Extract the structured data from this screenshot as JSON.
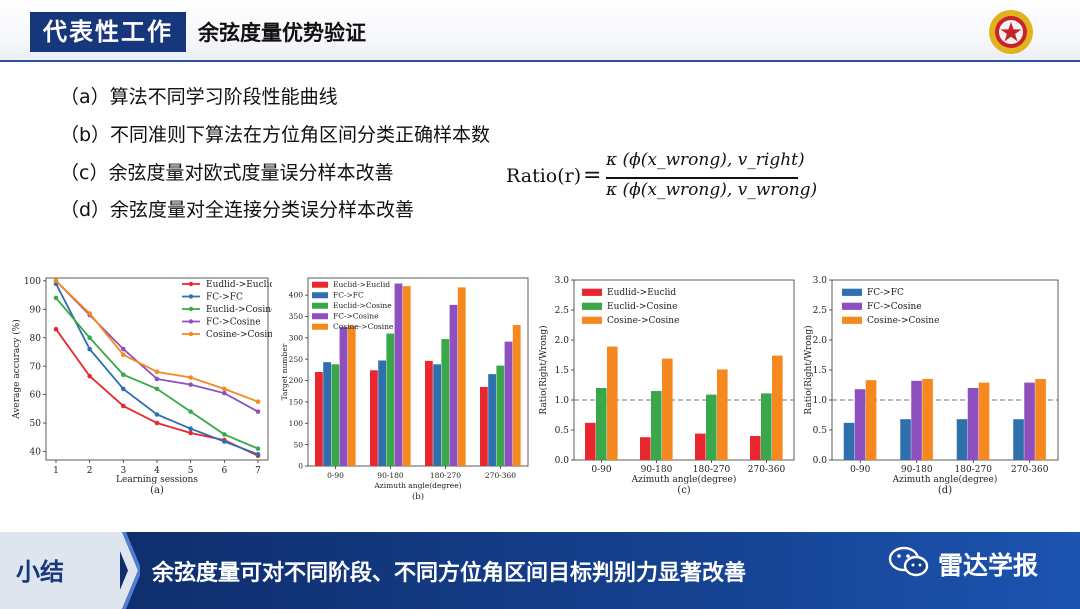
{
  "header": {
    "tag": "代表性工作",
    "title": "余弦度量优势验证"
  },
  "bullets": [
    "（a）算法不同学习阶段性能曲线",
    "（b）不同准则下算法在方位角区间分类正确样本数",
    "（c）余弦度量对欧式度量误分样本改善",
    "（d）余弦度量对全连接分类误分样本改善"
  ],
  "formula": {
    "lhs": "Ratio(r)",
    "eq": "=",
    "numerator": "κ (ϕ(x_wrong), v_right)",
    "denominator": "κ (ϕ(x_wrong), v_wrong)"
  },
  "footer": {
    "label": "小结",
    "text": "余弦度量可对不同阶段、不同方位角区间目标判别力显著改善",
    "brand": "雷达学报"
  },
  "chart_data": [
    {
      "type": "line",
      "panel": "(a)",
      "xlabel": "Learning sessions",
      "ylabel": "Average accuracy (%)",
      "x": [
        1,
        2,
        3,
        4,
        5,
        6,
        7
      ],
      "ylim": [
        37,
        101
      ],
      "yticks": [
        40,
        50,
        60,
        70,
        80,
        90,
        100
      ],
      "legend": "top-right",
      "series": [
        {
          "name": "Eudlid->Euclid",
          "color": "#e8282e",
          "values": [
            83,
            66.5,
            56,
            50,
            46.5,
            44,
            38.5
          ]
        },
        {
          "name": "FC->FC",
          "color": "#2f6fae",
          "values": [
            99,
            76,
            62,
            53,
            48,
            43.5,
            39
          ]
        },
        {
          "name": "Euclid->Cosine",
          "color": "#3aa84a",
          "values": [
            94,
            80,
            67,
            62,
            54,
            46,
            41
          ]
        },
        {
          "name": "FC->Cosine",
          "color": "#8e4fbf",
          "values": [
            100,
            88,
            76,
            65.5,
            63.5,
            60.5,
            54
          ]
        },
        {
          "name": "Cosine->Cosine",
          "color": "#f5881f",
          "values": [
            100,
            88.5,
            74,
            68,
            66,
            62,
            57.5
          ]
        }
      ]
    },
    {
      "type": "bar",
      "panel": "(b)",
      "xlabel": "Azimuth angle(degree)",
      "ylabel": "Target number",
      "categories": [
        "0-90",
        "90-180",
        "180-270",
        "270-360"
      ],
      "ylim": [
        0,
        440
      ],
      "yticks": [
        0,
        50,
        100,
        150,
        200,
        250,
        300,
        350,
        400
      ],
      "legend": "top-left",
      "series": [
        {
          "name": "Euclid->Euclid",
          "color": "#e8282e",
          "values": [
            220,
            224,
            246,
            185
          ]
        },
        {
          "name": "FC->FC",
          "color": "#2f6fae",
          "values": [
            243,
            247,
            238,
            215
          ]
        },
        {
          "name": "Euclid->Cosine",
          "color": "#3aa84a",
          "values": [
            238,
            310,
            297,
            235
          ]
        },
        {
          "name": "FC->Cosine",
          "color": "#8e4fbf",
          "values": [
            325,
            427,
            377,
            291
          ]
        },
        {
          "name": "Cosine->Cosine",
          "color": "#f5881f",
          "values": [
            328,
            421,
            418,
            330
          ]
        }
      ]
    },
    {
      "type": "bar",
      "panel": "(c)",
      "xlabel": "Azimuth angle(degree)",
      "ylabel": "Ratio(Right/Wrong)",
      "categories": [
        "0-90",
        "90-180",
        "180-270",
        "270-360"
      ],
      "ylim": [
        0,
        3.0
      ],
      "yticks": [
        "0.0",
        "0.5",
        "1.0",
        "1.5",
        "2.0",
        "2.5",
        "3.0"
      ],
      "reference_line": 1.0,
      "legend": "top-left",
      "series": [
        {
          "name": "Eudlid->Euclid",
          "color": "#e8282e",
          "values": [
            0.62,
            0.38,
            0.44,
            0.4
          ]
        },
        {
          "name": "Euclid->Cosine",
          "color": "#3aa84a",
          "values": [
            1.2,
            1.15,
            1.09,
            1.11
          ]
        },
        {
          "name": "Cosine->Cosine",
          "color": "#f5881f",
          "values": [
            1.89,
            1.69,
            1.51,
            1.74
          ]
        }
      ]
    },
    {
      "type": "bar",
      "panel": "(d)",
      "xlabel": "Azimuth angle(degree)",
      "ylabel": "Ratio(Right/Wrong)",
      "categories": [
        "0-90",
        "90-180",
        "180-270",
        "270-360"
      ],
      "ylim": [
        0,
        3.0
      ],
      "yticks": [
        "0.0",
        "0.5",
        "1.0",
        "1.5",
        "2.0",
        "2.5",
        "3.0"
      ],
      "reference_line": 1.0,
      "legend": "top-left",
      "series": [
        {
          "name": "FC->FC",
          "color": "#2f6fae",
          "values": [
            0.62,
            0.68,
            0.68,
            0.68
          ]
        },
        {
          "name": "FC->Cosine",
          "color": "#8e4fbf",
          "values": [
            1.18,
            1.32,
            1.2,
            1.29
          ]
        },
        {
          "name": "Cosine->Cosine",
          "color": "#f5881f",
          "values": [
            1.33,
            1.35,
            1.29,
            1.35
          ]
        }
      ]
    }
  ]
}
